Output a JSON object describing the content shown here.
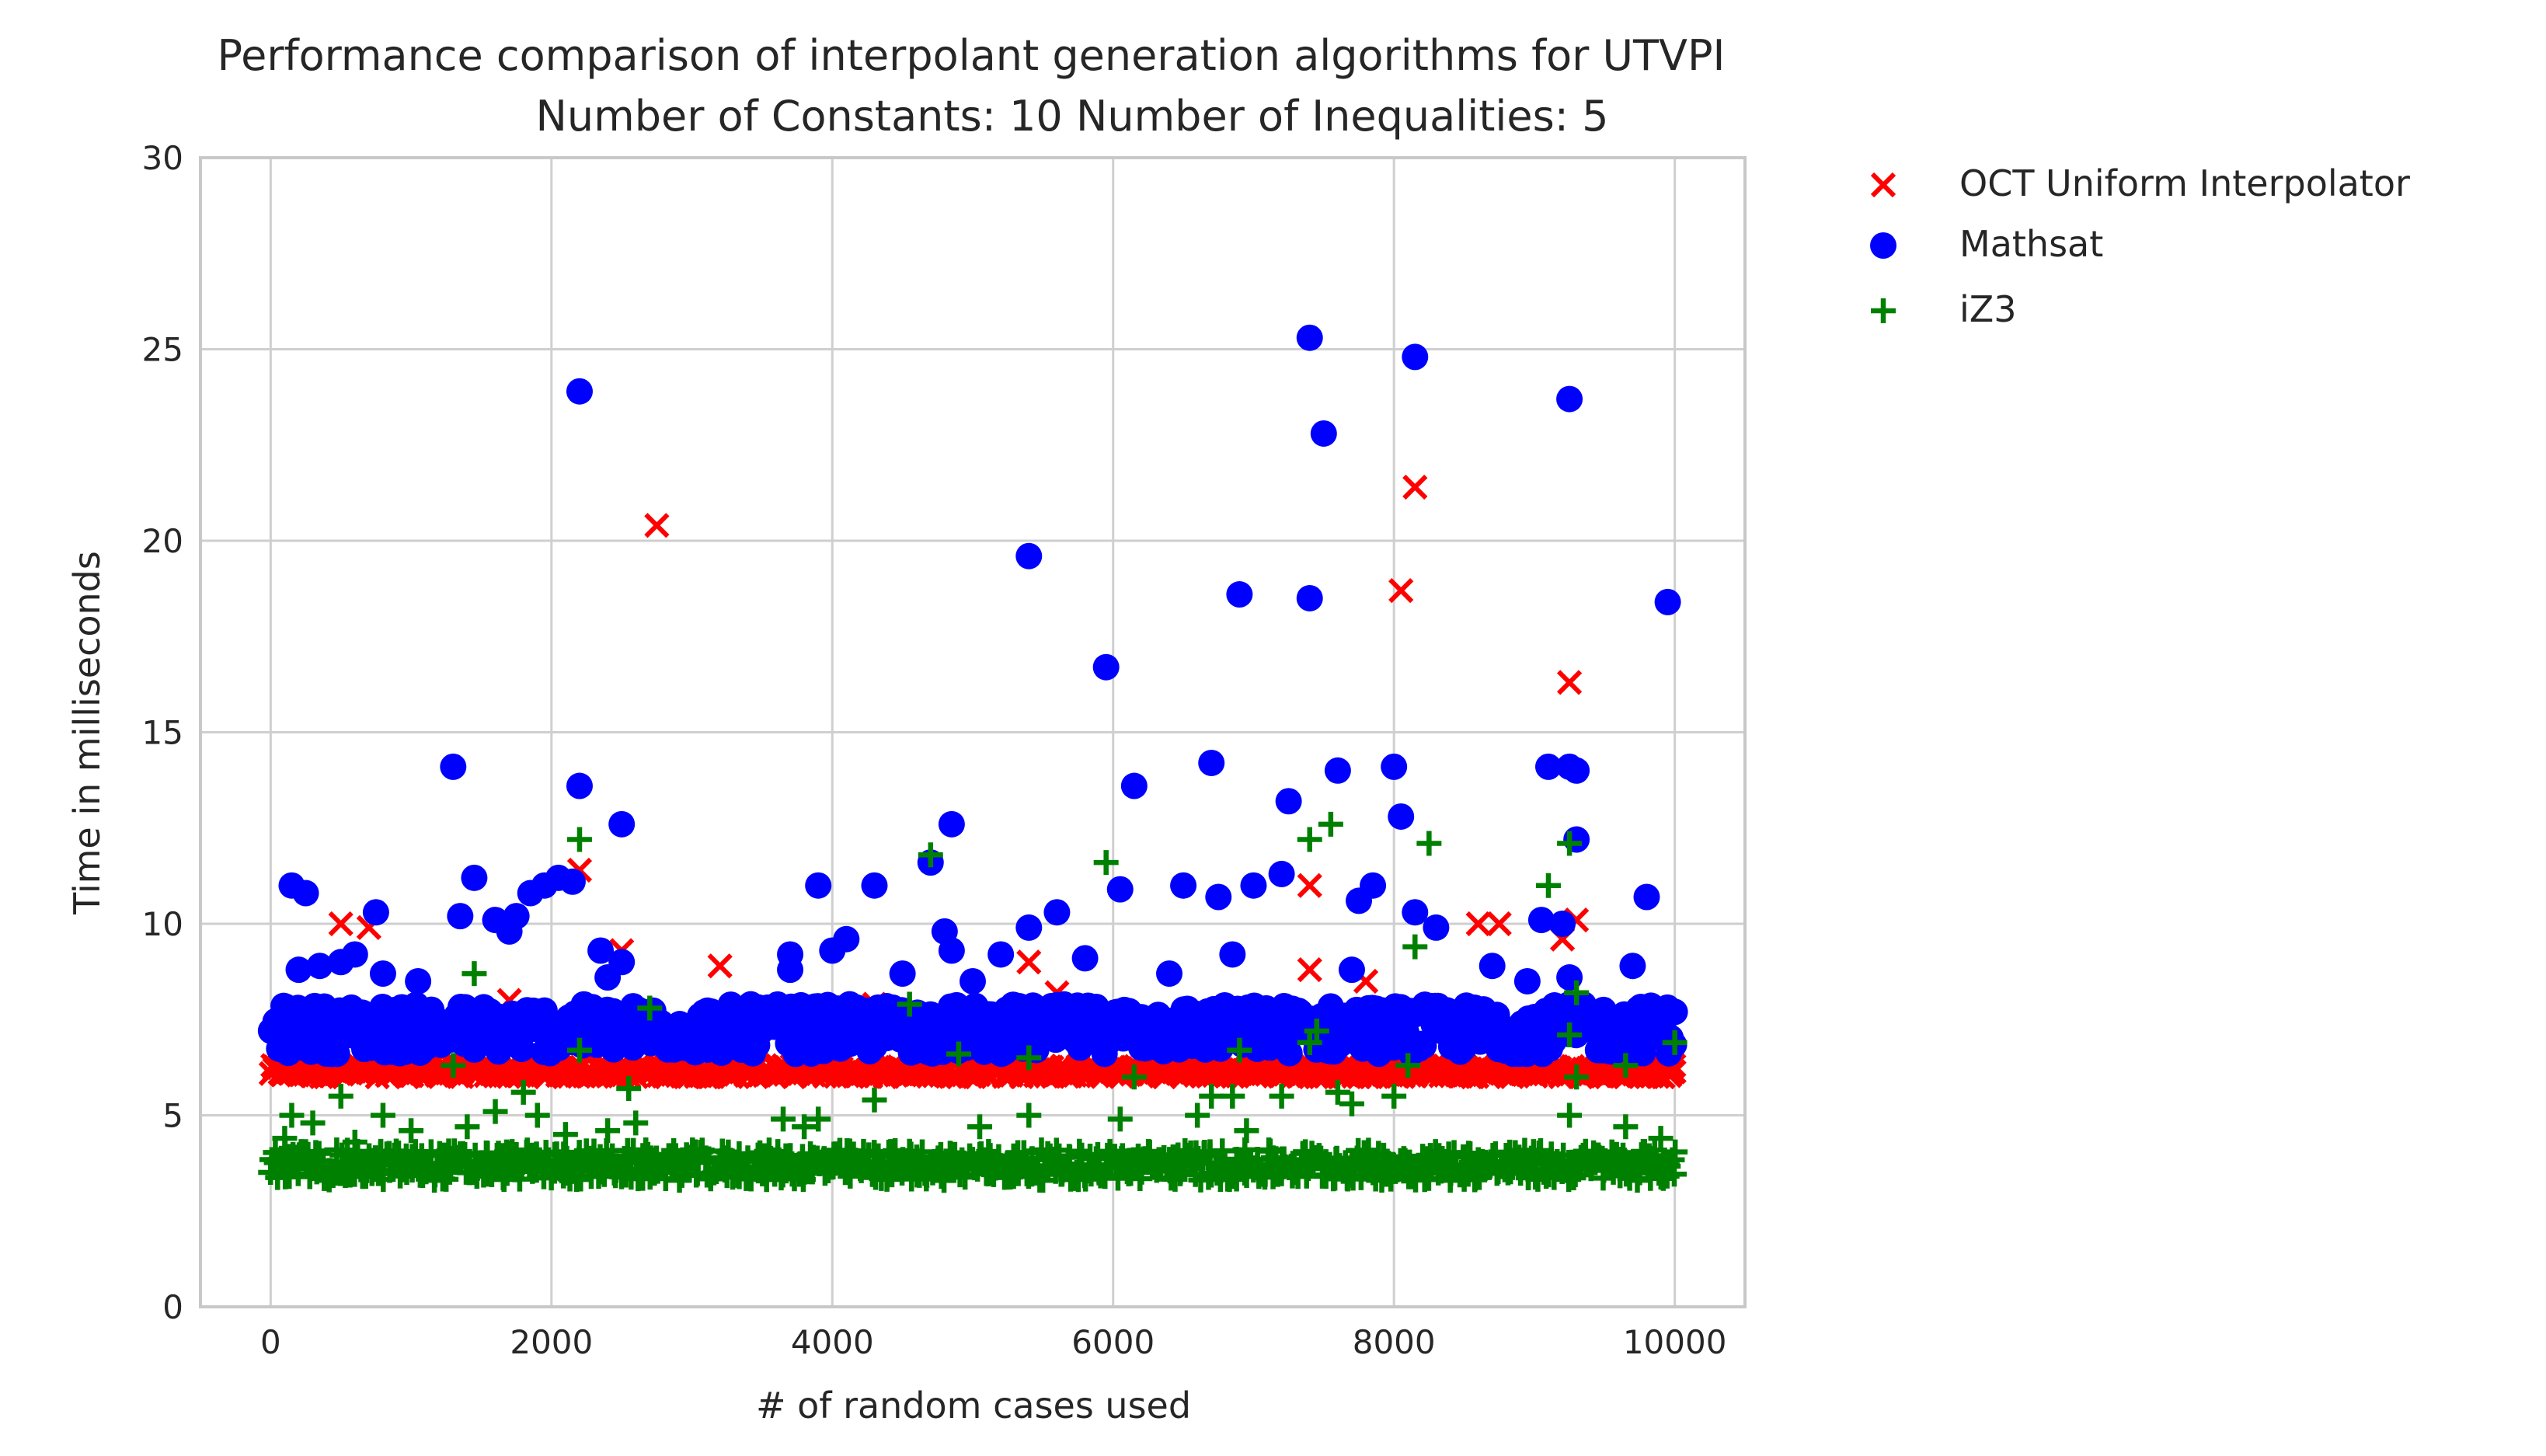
{
  "chart_data": {
    "type": "scatter",
    "title": "Performance comparison of interpolant generation algorithms for UTVPI",
    "subtitle": "Number of Constants: 10 Number of Inequalities: 5",
    "xlabel": "# of random cases used",
    "ylabel": "Time in milliseconds",
    "xlim": [
      -500,
      10500
    ],
    "ylim": [
      0,
      30
    ],
    "xticks": [
      0,
      2000,
      4000,
      6000,
      8000,
      10000
    ],
    "yticks": [
      0,
      5,
      10,
      15,
      20,
      25,
      30
    ],
    "grid": true,
    "legend_position": "outside-top-right",
    "series": [
      {
        "name": "OCT Uniform Interpolator",
        "marker": "x",
        "color": "#ff0000",
        "baseline": {
          "x_range": [
            0,
            10000
          ],
          "y_range": [
            6.0,
            6.3
          ]
        },
        "points": [
          [
            500,
            10.0
          ],
          [
            700,
            9.9
          ],
          [
            1700,
            8.0
          ],
          [
            2200,
            11.4
          ],
          [
            2500,
            9.3
          ],
          [
            2750,
            20.4
          ],
          [
            3200,
            8.9
          ],
          [
            4300,
            7.9
          ],
          [
            5400,
            9.0
          ],
          [
            5600,
            8.2
          ],
          [
            7400,
            11.0
          ],
          [
            7400,
            8.8
          ],
          [
            7800,
            8.5
          ],
          [
            8050,
            18.7
          ],
          [
            8150,
            21.4
          ],
          [
            8600,
            10.0
          ],
          [
            8750,
            10.0
          ],
          [
            9200,
            9.6
          ],
          [
            9250,
            16.3
          ],
          [
            9300,
            10.1
          ]
        ]
      },
      {
        "name": "Mathsat",
        "marker": "o",
        "color": "#0000ff",
        "baseline": {
          "x_range": [
            0,
            10000
          ],
          "y_range": [
            6.6,
            7.9
          ]
        },
        "points": [
          [
            150,
            11.0
          ],
          [
            250,
            10.8
          ],
          [
            200,
            8.8
          ],
          [
            350,
            8.9
          ],
          [
            500,
            9.0
          ],
          [
            600,
            9.2
          ],
          [
            750,
            10.3
          ],
          [
            800,
            8.7
          ],
          [
            1050,
            8.5
          ],
          [
            1300,
            14.1
          ],
          [
            1350,
            10.2
          ],
          [
            1450,
            11.2
          ],
          [
            1600,
            10.1
          ],
          [
            1700,
            9.8
          ],
          [
            1750,
            10.2
          ],
          [
            1850,
            10.8
          ],
          [
            1950,
            11.0
          ],
          [
            2050,
            11.2
          ],
          [
            2150,
            11.1
          ],
          [
            2200,
            23.9
          ],
          [
            2200,
            13.6
          ],
          [
            2350,
            9.3
          ],
          [
            2400,
            8.6
          ],
          [
            2500,
            9.0
          ],
          [
            2500,
            12.6
          ],
          [
            3700,
            9.2
          ],
          [
            3700,
            8.8
          ],
          [
            3900,
            11.0
          ],
          [
            4000,
            9.3
          ],
          [
            4100,
            9.6
          ],
          [
            4300,
            11.0
          ],
          [
            4500,
            8.7
          ],
          [
            4700,
            11.6
          ],
          [
            4800,
            9.8
          ],
          [
            4850,
            9.3
          ],
          [
            4850,
            12.6
          ],
          [
            5000,
            8.5
          ],
          [
            5200,
            9.2
          ],
          [
            5400,
            9.9
          ],
          [
            5400,
            19.6
          ],
          [
            5600,
            10.3
          ],
          [
            5800,
            9.1
          ],
          [
            5950,
            16.7
          ],
          [
            6050,
            10.9
          ],
          [
            6150,
            13.6
          ],
          [
            6400,
            8.7
          ],
          [
            6500,
            11.0
          ],
          [
            6700,
            14.2
          ],
          [
            6750,
            10.7
          ],
          [
            6850,
            9.2
          ],
          [
            6900,
            18.6
          ],
          [
            7000,
            11.0
          ],
          [
            7200,
            11.3
          ],
          [
            7250,
            13.2
          ],
          [
            7400,
            25.3
          ],
          [
            7400,
            18.5
          ],
          [
            7500,
            22.8
          ],
          [
            7600,
            14.0
          ],
          [
            7700,
            8.8
          ],
          [
            7750,
            10.6
          ],
          [
            7850,
            11.0
          ],
          [
            8000,
            14.1
          ],
          [
            8050,
            12.8
          ],
          [
            8150,
            24.8
          ],
          [
            8150,
            10.3
          ],
          [
            8300,
            9.9
          ],
          [
            8700,
            8.9
          ],
          [
            8950,
            8.5
          ],
          [
            9050,
            10.1
          ],
          [
            9100,
            14.1
          ],
          [
            9200,
            10.0
          ],
          [
            9250,
            14.1
          ],
          [
            9250,
            23.7
          ],
          [
            9250,
            8.6
          ],
          [
            9300,
            14.0
          ],
          [
            9300,
            12.2
          ],
          [
            9700,
            8.9
          ],
          [
            9800,
            10.7
          ],
          [
            9950,
            18.4
          ],
          [
            10000,
            7.7
          ]
        ]
      },
      {
        "name": "iZ3",
        "marker": "+",
        "color": "#008000",
        "baseline": {
          "x_range": [
            0,
            10000
          ],
          "y_range": [
            3.3,
            4.1
          ]
        },
        "points": [
          [
            100,
            4.4
          ],
          [
            150,
            5.0
          ],
          [
            300,
            4.8
          ],
          [
            500,
            5.5
          ],
          [
            600,
            4.3
          ],
          [
            800,
            5.0
          ],
          [
            1000,
            4.6
          ],
          [
            1300,
            6.3
          ],
          [
            1400,
            4.7
          ],
          [
            1450,
            8.7
          ],
          [
            1600,
            5.1
          ],
          [
            1800,
            5.6
          ],
          [
            1900,
            5.0
          ],
          [
            2100,
            4.5
          ],
          [
            2200,
            6.7
          ],
          [
            2200,
            12.2
          ],
          [
            2400,
            4.6
          ],
          [
            2550,
            5.7
          ],
          [
            2600,
            4.8
          ],
          [
            2700,
            7.8
          ],
          [
            3650,
            4.9
          ],
          [
            3800,
            4.7
          ],
          [
            3900,
            4.9
          ],
          [
            4300,
            5.4
          ],
          [
            4550,
            7.9
          ],
          [
            4700,
            11.8
          ],
          [
            4900,
            6.6
          ],
          [
            5050,
            4.7
          ],
          [
            5400,
            6.5
          ],
          [
            5400,
            5.0
          ],
          [
            5950,
            11.6
          ],
          [
            6050,
            4.9
          ],
          [
            6150,
            6.0
          ],
          [
            6600,
            5.0
          ],
          [
            6700,
            5.5
          ],
          [
            6850,
            5.5
          ],
          [
            6950,
            4.6
          ],
          [
            6900,
            6.7
          ],
          [
            7200,
            5.5
          ],
          [
            7400,
            6.9
          ],
          [
            7400,
            12.2
          ],
          [
            7450,
            7.2
          ],
          [
            7550,
            12.6
          ],
          [
            7600,
            5.6
          ],
          [
            7700,
            5.3
          ],
          [
            8000,
            5.5
          ],
          [
            8100,
            6.3
          ],
          [
            8150,
            9.4
          ],
          [
            8250,
            12.1
          ],
          [
            9100,
            11.0
          ],
          [
            9250,
            12.1
          ],
          [
            9250,
            7.1
          ],
          [
            9250,
            5.0
          ],
          [
            9300,
            8.2
          ],
          [
            9300,
            6.0
          ],
          [
            9650,
            6.3
          ],
          [
            9650,
            4.7
          ],
          [
            9900,
            4.4
          ],
          [
            10000,
            6.9
          ]
        ]
      }
    ]
  }
}
